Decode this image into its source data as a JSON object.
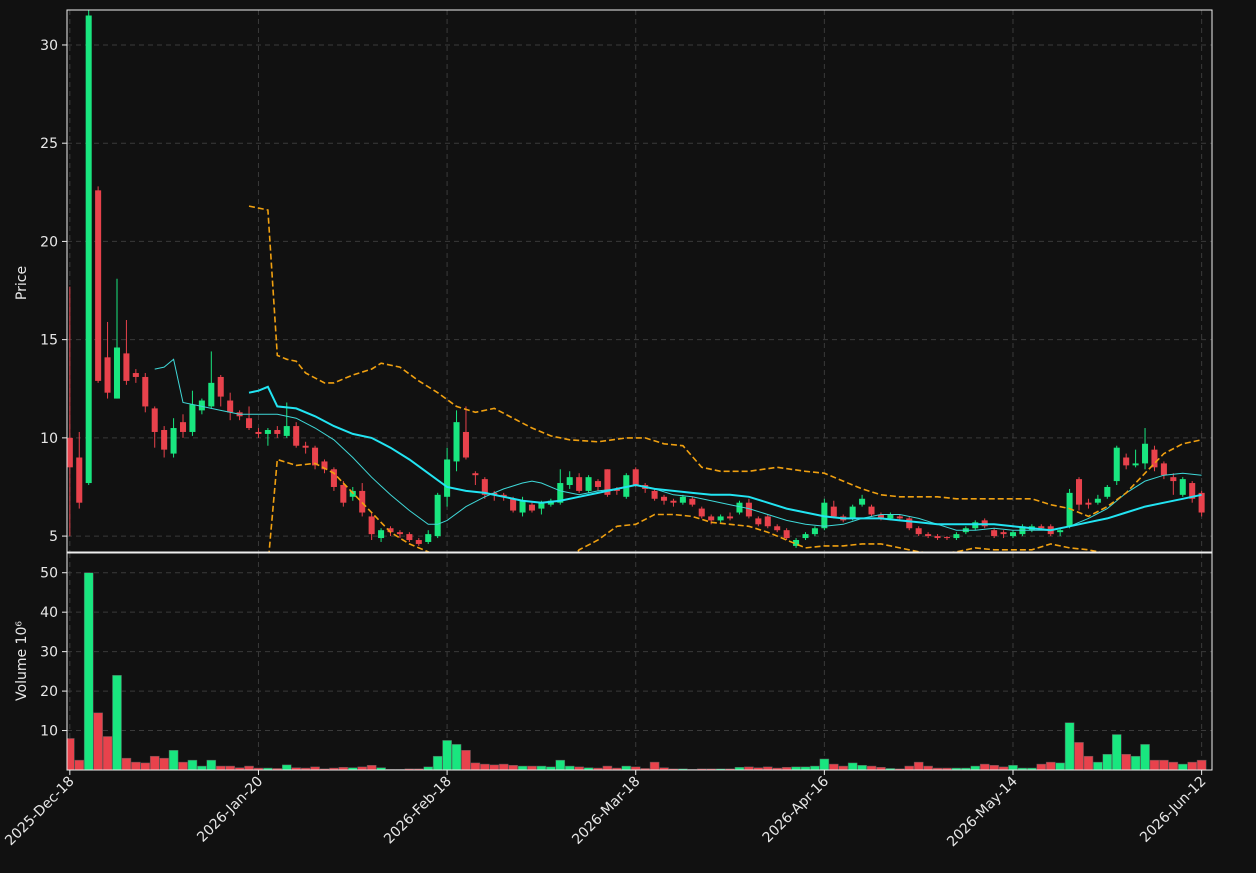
{
  "chart_data": {
    "type": "candlestick",
    "ylabel": "Price",
    "xlim": [
      -0.3,
      121.1
    ],
    "ylim": [
      4.19,
      31.78
    ],
    "yticks": [
      5,
      10,
      15,
      20,
      25,
      30
    ],
    "xticks": [
      {
        "value": 0,
        "label": "2025-Dec-18"
      },
      {
        "value": 20,
        "label": "2026-Jan-20"
      },
      {
        "value": 40,
        "label": "2026-Feb-18"
      },
      {
        "value": 60,
        "label": "2026-Mar-18"
      },
      {
        "value": 80,
        "label": "2026-Apr-16"
      },
      {
        "value": 100,
        "label": "2026-May-14"
      },
      {
        "value": 120,
        "label": "2026-Jun-12"
      }
    ],
    "grid": true,
    "up_color": "#19e67f",
    "down_color": "#e8424c",
    "open": [
      10,
      9,
      7.7,
      22.6,
      14.1,
      12,
      14.3,
      13.3,
      13.1,
      11.5,
      10.4,
      9.2,
      10.8,
      10.3,
      11.4,
      11.6,
      13.1,
      11.9,
      11.3,
      11,
      10.3,
      10.2,
      10.4,
      10.1,
      10.6,
      9.6,
      9.5,
      8.8,
      8.4,
      7.6,
      7,
      7.3,
      6,
      4.9,
      5.4,
      5.2,
      5.1,
      4.8,
      4.7,
      5,
      7,
      8.8,
      10.3,
      8.2,
      7.9,
      7.2,
      7.1,
      6.9,
      6.2,
      6.6,
      6.4,
      6.6,
      6.7,
      7.6,
      8,
      7.3,
      7.8,
      8.4,
      7.4,
      7,
      8.4,
      7.6,
      7.3,
      7,
      6.8,
      6.7,
      6.9,
      6.4,
      6,
      5.8,
      6,
      6.2,
      6.7,
      5.9,
      6,
      5.5,
      5.3,
      4.5,
      4.9,
      5.1,
      5.4,
      6.5,
      6,
      5.9,
      6.6,
      6.5,
      6.1,
      5.9,
      6,
      5.9,
      5.4,
      5.1,
      5,
      4.95,
      4.9,
      5.2,
      5.4,
      5.8,
      5.3,
      5.2,
      5,
      5.1,
      5.3,
      5.5,
      5.5,
      5.2,
      5.5,
      7.9,
      6.7,
      6.7,
      7,
      7.8,
      9,
      8.6,
      8.7,
      9.4,
      8.7,
      8,
      7.1,
      7.7,
      7.2
    ],
    "high": [
      17.7,
      10.3,
      31.8,
      22.8,
      15.9,
      18.1,
      16,
      13.5,
      13.3,
      11.6,
      10.6,
      11,
      11.2,
      12.4,
      12,
      14.4,
      13.2,
      12.3,
      11.4,
      11.6,
      10.5,
      10.5,
      10.6,
      11.8,
      10.8,
      9.8,
      9.6,
      8.9,
      8.5,
      7.8,
      7.5,
      7.7,
      6.2,
      5.4,
      5.5,
      5.3,
      5.2,
      4.9,
      5.3,
      7.2,
      9.5,
      11.4,
      11.6,
      8.3,
      8,
      7.3,
      7.2,
      7,
      7,
      6.7,
      6.8,
      6.9,
      8.4,
      8.3,
      8.2,
      8.1,
      7.9,
      8.4,
      7.5,
      8.2,
      8.5,
      7.7,
      7.4,
      7.1,
      6.9,
      7.1,
      7,
      6.5,
      6.1,
      6.1,
      6.2,
      6.8,
      6.9,
      6,
      6.1,
      5.6,
      5.4,
      4.9,
      5.2,
      5.5,
      6.9,
      6.8,
      6.1,
      6.6,
      7.1,
      6.6,
      6.2,
      6.2,
      6.1,
      6,
      5.5,
      5.2,
      5.1,
      5,
      5.2,
      5.5,
      5.8,
      5.9,
      5.4,
      5.3,
      5.3,
      5.6,
      5.6,
      5.6,
      5.6,
      5.4,
      7.4,
      8,
      6.9,
      7.1,
      7.6,
      9.6,
      9.2,
      9.4,
      10.5,
      9.6,
      8.8,
      8.2,
      8,
      7.8,
      7.3
    ],
    "low": [
      5,
      6.4,
      7.6,
      12.8,
      12,
      12,
      12.7,
      12.8,
      11.3,
      9.5,
      9,
      9,
      10,
      10.1,
      11.2,
      11.5,
      11.6,
      10.9,
      10.9,
      10.4,
      10,
      9.6,
      10,
      10,
      9.5,
      9.2,
      8.4,
      8.2,
      7.3,
      6.5,
      6.8,
      6,
      4.8,
      4.7,
      5,
      4.9,
      4.7,
      4.5,
      4.6,
      4.9,
      6.5,
      8.3,
      8.9,
      7.6,
      6.9,
      6.8,
      6.8,
      6.2,
      6,
      6.2,
      6.1,
      6.5,
      6.6,
      7.4,
      7.2,
      7.2,
      7.3,
      7,
      7.1,
      6.9,
      7.5,
      7.2,
      6.8,
      6.6,
      6.5,
      6.6,
      6.5,
      5.9,
      5.6,
      5.7,
      5.8,
      6.1,
      5.9,
      5.5,
      5.4,
      5.2,
      4.8,
      4.4,
      4.8,
      5,
      5.3,
      5.9,
      5.7,
      5.8,
      6.5,
      6,
      5.8,
      5.8,
      5.8,
      5.3,
      5,
      4.9,
      4.8,
      4.8,
      4.8,
      5.1,
      5.3,
      5.4,
      4.9,
      4.9,
      4.9,
      5,
      5.2,
      5.3,
      5,
      5,
      5.4,
      6.3,
      6.4,
      6.6,
      6.9,
      7.6,
      8.4,
      8.5,
      8.4,
      8.3,
      7.9,
      7.1,
      7,
      6.7,
      6
    ],
    "close": [
      8.5,
      6.7,
      31.5,
      12.9,
      12.3,
      14.6,
      12.9,
      13.1,
      11.6,
      10.3,
      9.4,
      10.5,
      10.3,
      11.7,
      11.9,
      12.8,
      12.1,
      11.3,
      11.1,
      10.5,
      10.2,
      10.4,
      10.2,
      10.6,
      9.6,
      9.5,
      8.6,
      8.4,
      7.5,
      6.7,
      7.3,
      6.2,
      5.1,
      5.3,
      5.2,
      5.1,
      4.8,
      4.6,
      5.1,
      7.1,
      8.9,
      10.8,
      9,
      8.1,
      7.1,
      7.1,
      7,
      6.3,
      6.8,
      6.3,
      6.7,
      6.8,
      7.7,
      8,
      7.3,
      8,
      7.5,
      7.1,
      7.3,
      8.1,
      7.6,
      7.4,
      6.9,
      6.8,
      6.7,
      7,
      6.6,
      6,
      5.8,
      6,
      5.9,
      6.7,
      6,
      5.6,
      5.5,
      5.3,
      4.9,
      4.8,
      5.1,
      5.4,
      6.7,
      6,
      5.8,
      6.5,
      6.9,
      6.1,
      5.9,
      6.1,
      5.9,
      5.4,
      5.1,
      5,
      4.9,
      4.9,
      5.1,
      5.4,
      5.7,
      5.5,
      5,
      5.1,
      5.2,
      5.5,
      5.5,
      5.4,
      5.1,
      5.3,
      7.2,
      6.6,
      6.6,
      6.9,
      7.5,
      9.5,
      8.6,
      8.7,
      9.7,
      8.5,
      8.1,
      7.8,
      7.9,
      6.9,
      6.2
    ],
    "overlays": [
      {
        "color": "#3fd8d8",
        "width": 1,
        "dash": false,
        "x": [
          9,
          10,
          11,
          12,
          14,
          16,
          18,
          20,
          22,
          24,
          26,
          28,
          30,
          32,
          34,
          36,
          38,
          39,
          40,
          42,
          44,
          46,
          48,
          49,
          50,
          52,
          54,
          56,
          58,
          60,
          62,
          64,
          66,
          68,
          70,
          72,
          74,
          76,
          78,
          80,
          82,
          84,
          86,
          88,
          90,
          92,
          94,
          96,
          98,
          100,
          102,
          104,
          106,
          108,
          110,
          112,
          114,
          116,
          118,
          120
        ],
        "values": [
          13.5,
          13.6,
          14,
          11.8,
          11.6,
          11.4,
          11.2,
          11.2,
          11.2,
          11,
          10.5,
          9.9,
          9,
          8,
          7.1,
          6.3,
          5.6,
          5.6,
          5.8,
          6.5,
          7,
          7.4,
          7.7,
          7.8,
          7.7,
          7.3,
          7.1,
          7.3,
          7.4,
          7.6,
          7.4,
          7.1,
          7,
          6.8,
          6.6,
          6.4,
          6.1,
          5.8,
          5.6,
          5.5,
          5.6,
          5.9,
          6.1,
          6.1,
          5.9,
          5.6,
          5.3,
          5.3,
          5.4,
          5.3,
          5.3,
          5.3,
          5.5,
          5.9,
          6.4,
          7.2,
          7.8,
          8.1,
          8.2,
          8.1
        ]
      },
      {
        "color": "#22e4f2",
        "width": 2,
        "dash": false,
        "x": [
          19,
          20,
          21,
          22,
          24,
          26,
          28,
          30,
          32,
          34,
          36,
          38,
          40,
          42,
          44,
          46,
          48,
          50,
          52,
          54,
          56,
          58,
          60,
          62,
          64,
          66,
          68,
          70,
          72,
          74,
          76,
          78,
          80,
          82,
          84,
          86,
          88,
          90,
          92,
          94,
          96,
          98,
          100,
          102,
          104,
          106,
          108,
          110,
          112,
          114,
          116,
          118,
          120
        ],
        "values": [
          12.3,
          12.4,
          12.6,
          11.6,
          11.5,
          11.1,
          10.6,
          10.2,
          10,
          9.5,
          8.9,
          8.2,
          7.5,
          7.3,
          7.2,
          7,
          6.8,
          6.7,
          6.8,
          7,
          7.2,
          7.4,
          7.6,
          7.4,
          7.3,
          7.2,
          7.1,
          7.1,
          7,
          6.7,
          6.4,
          6.2,
          6,
          5.9,
          5.9,
          5.9,
          5.8,
          5.7,
          5.6,
          5.6,
          5.6,
          5.6,
          5.5,
          5.4,
          5.3,
          5.5,
          5.7,
          5.9,
          6.2,
          6.5,
          6.7,
          6.9,
          7.1
        ]
      },
      {
        "color": "#f0a010",
        "width": 1.6,
        "dash": true,
        "x": [
          19,
          21,
          22,
          23,
          24,
          25,
          27,
          28,
          30,
          32,
          33,
          35,
          37,
          39,
          41,
          43,
          45,
          47,
          49,
          51,
          53,
          56,
          59,
          61,
          63,
          65,
          67,
          69,
          72,
          75,
          78,
          80,
          82,
          84,
          86,
          88,
          90,
          92,
          94,
          97,
          100,
          102,
          104,
          106,
          108,
          110,
          112,
          114,
          116,
          118,
          120
        ],
        "values": [
          21.8,
          21.6,
          14.2,
          14,
          13.9,
          13.3,
          12.8,
          12.8,
          13.2,
          13.5,
          13.8,
          13.6,
          12.9,
          12.3,
          11.6,
          11.3,
          11.5,
          11,
          10.5,
          10.1,
          9.9,
          9.8,
          10,
          10,
          9.7,
          9.6,
          8.5,
          8.3,
          8.3,
          8.5,
          8.3,
          8.2,
          7.8,
          7.4,
          7.1,
          7,
          7,
          7,
          6.9,
          6.9,
          6.9,
          6.9,
          6.6,
          6.4,
          6,
          6.5,
          7.2,
          8.2,
          9.2,
          9.7,
          9.9
        ]
      },
      {
        "color": "#f0a010",
        "width": 1.6,
        "dash": true,
        "x": [
          21,
          22,
          24,
          26,
          28,
          30,
          32,
          34,
          36,
          38,
          40,
          44,
          48,
          52,
          54,
          56,
          58,
          60,
          62,
          64,
          66,
          68,
          70,
          72,
          74,
          76,
          78,
          80,
          82,
          84,
          86,
          88,
          90,
          92,
          94,
          96,
          98,
          100,
          102,
          104,
          106,
          108,
          110,
          112,
          114,
          116,
          118,
          120
        ],
        "values": [
          3.5,
          8.9,
          8.6,
          8.7,
          8.2,
          7.2,
          6.2,
          5.2,
          4.6,
          4.2,
          3.6,
          2.5,
          2,
          3,
          4.3,
          4.8,
          5.5,
          5.6,
          6.1,
          6.1,
          6,
          5.7,
          5.6,
          5.5,
          5.2,
          4.8,
          4.4,
          4.5,
          4.5,
          4.6,
          4.6,
          4.4,
          4.2,
          4.1,
          4.2,
          4.4,
          4.3,
          4.3,
          4.3,
          4.6,
          4.4,
          4.3,
          4.1,
          4,
          3.8,
          3.6,
          3.6,
          4
        ]
      }
    ],
    "volume": {
      "ylabel": "Volume  10⁶",
      "ylim": [
        0,
        55
      ],
      "yticks": [
        10,
        20,
        30,
        40,
        50
      ],
      "values": [
        8,
        2.5,
        50,
        14.5,
        8.5,
        24,
        3,
        2,
        1.8,
        3.5,
        3,
        5,
        2,
        2.5,
        1,
        2.5,
        1,
        1,
        0.6,
        1,
        0.5,
        0.5,
        0.4,
        1.3,
        0.6,
        0.5,
        0.8,
        0.3,
        0.5,
        0.7,
        0.6,
        0.8,
        1.2,
        0.6,
        0.2,
        0.2,
        0.3,
        0.3,
        0.8,
        3.5,
        7.5,
        6.5,
        5,
        1.8,
        1.5,
        1.3,
        1.5,
        1.2,
        1,
        1,
        1,
        0.8,
        2.5,
        1,
        0.8,
        0.6,
        0.5,
        1,
        0.5,
        1,
        0.8,
        0.4,
        2,
        0.6,
        0.3,
        0.3,
        0.2,
        0.3,
        0.3,
        0.3,
        0.3,
        0.7,
        0.8,
        0.6,
        0.8,
        0.5,
        0.7,
        0.8,
        0.8,
        1,
        2.8,
        1.5,
        1,
        1.8,
        1.2,
        1,
        0.7,
        0.4,
        0.3,
        1,
        2,
        1,
        0.5,
        0.5,
        0.5,
        0.5,
        1,
        1.5,
        1.2,
        0.8,
        1.2,
        0.5,
        0.5,
        1.5,
        2,
        1.8,
        12,
        7,
        3.5,
        2,
        4,
        9,
        4,
        3.5,
        6.5,
        2.5,
        2.5,
        2,
        1.5,
        2,
        2.5
      ]
    }
  }
}
